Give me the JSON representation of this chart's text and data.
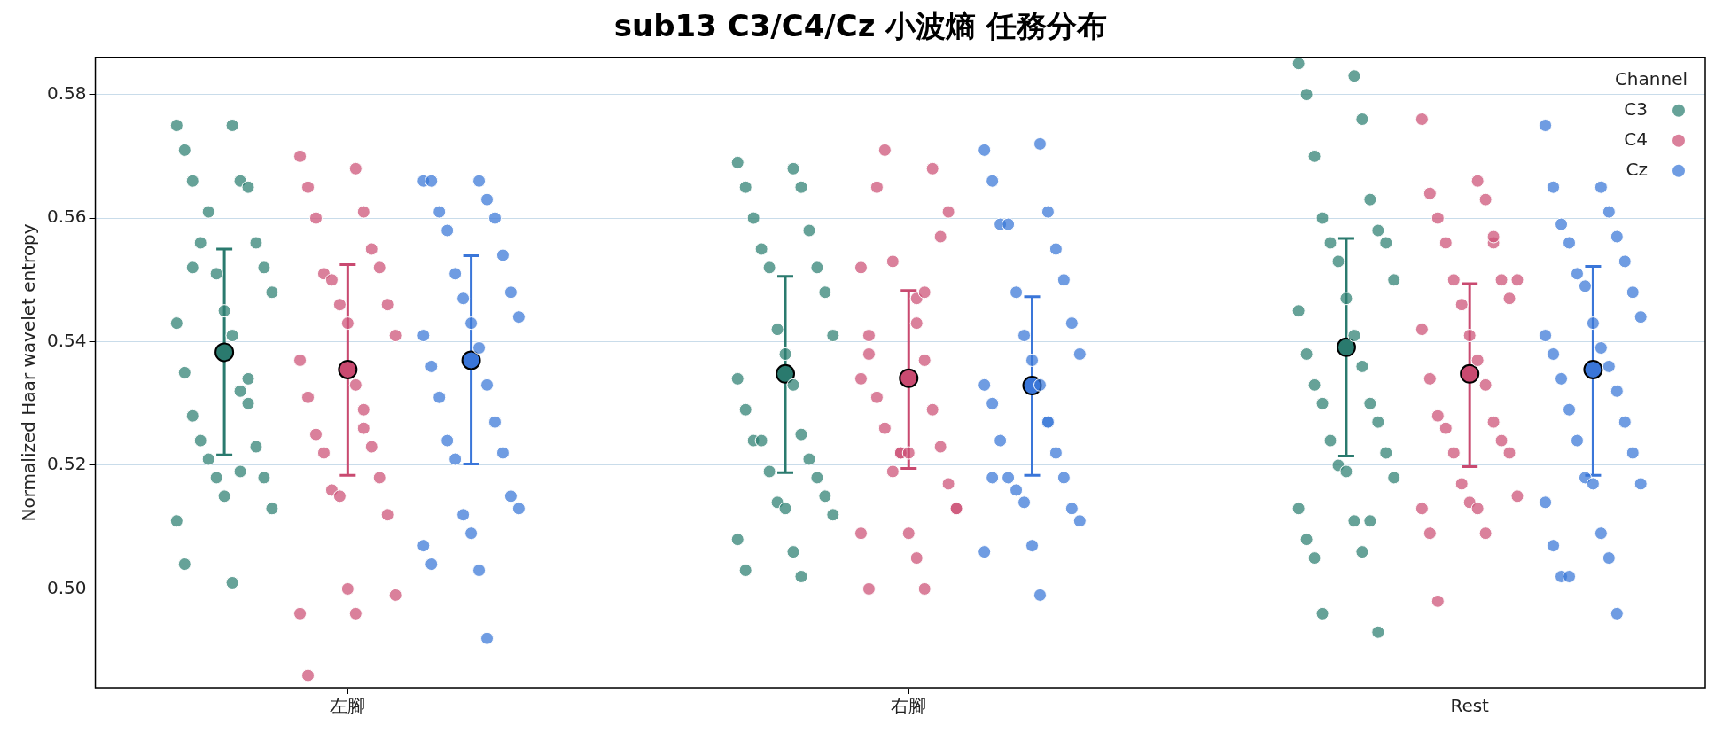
{
  "chart_data": {
    "type": "scatter",
    "title": "sub13 C3/C4/Cz 小波熵 任務分布",
    "ylabel": "Normalized Haar wavelet entropy",
    "legend_title": "Channel",
    "legend": "top right",
    "grid": "y",
    "marker": "circle",
    "categories": [
      "左腳",
      "右腳",
      "Rest"
    ],
    "ylim": [
      0.484,
      0.586
    ],
    "yticks": [
      {
        "value": 0.5,
        "label": "0.50"
      },
      {
        "value": 0.52,
        "label": "0.52"
      },
      {
        "value": 0.54,
        "label": "0.54"
      },
      {
        "value": 0.56,
        "label": "0.56"
      },
      {
        "value": 0.58,
        "label": "0.58"
      }
    ],
    "series": [
      {
        "name": "C3",
        "color": "#2f8073",
        "type": "scatter",
        "x": [
          "左腳",
          "左腳",
          "左腳",
          "左腳",
          "左腳",
          "左腳",
          "左腳",
          "左腳",
          "左腳",
          "左腳",
          "左腳",
          "左腳",
          "左腳",
          "左腳",
          "左腳",
          "左腳",
          "左腳",
          "左腳",
          "左腳",
          "左腳",
          "左腳",
          "左腳",
          "左腳",
          "左腳",
          "左腳",
          "左腳",
          "左腳",
          "左腳",
          "左腳",
          "左腳",
          "左腳",
          "左腳",
          "右腳",
          "右腳",
          "右腳",
          "右腳",
          "右腳",
          "右腳",
          "右腳",
          "右腳",
          "右腳",
          "右腳",
          "右腳",
          "右腳",
          "右腳",
          "右腳",
          "右腳",
          "右腳",
          "右腳",
          "右腳",
          "右腳",
          "右腳",
          "右腳",
          "右腳",
          "右腳",
          "右腳",
          "右腳",
          "右腳",
          "右腳",
          "右腳",
          "右腳",
          "右腳",
          "Rest",
          "Rest",
          "Rest",
          "Rest",
          "Rest",
          "Rest",
          "Rest",
          "Rest",
          "Rest",
          "Rest",
          "Rest",
          "Rest",
          "Rest",
          "Rest",
          "Rest",
          "Rest",
          "Rest",
          "Rest",
          "Rest",
          "Rest",
          "Rest",
          "Rest",
          "Rest",
          "Rest",
          "Rest",
          "Rest",
          "Rest",
          "Rest",
          "Rest",
          "Rest",
          "Rest",
          "Rest",
          "Rest",
          "Rest"
        ],
        "values": [
          0.575,
          0.575,
          0.571,
          0.566,
          0.566,
          0.565,
          0.556,
          0.556,
          0.561,
          0.552,
          0.551,
          0.548,
          0.545,
          0.543,
          0.541,
          0.535,
          0.532,
          0.528,
          0.53,
          0.524,
          0.523,
          0.521,
          0.518,
          0.518,
          0.513,
          0.515,
          0.511,
          0.501,
          0.504,
          0.519,
          0.552,
          0.534,
          0.569,
          0.568,
          0.565,
          0.565,
          0.56,
          0.558,
          0.555,
          0.552,
          0.552,
          0.548,
          0.542,
          0.541,
          0.538,
          0.534,
          0.533,
          0.529,
          0.525,
          0.524,
          0.521,
          0.524,
          0.518,
          0.519,
          0.515,
          0.514,
          0.512,
          0.513,
          0.508,
          0.506,
          0.503,
          0.502,
          0.585,
          0.583,
          0.58,
          0.576,
          0.57,
          0.563,
          0.56,
          0.558,
          0.556,
          0.556,
          0.553,
          0.55,
          0.547,
          0.545,
          0.541,
          0.538,
          0.536,
          0.533,
          0.53,
          0.53,
          0.527,
          0.524,
          0.522,
          0.52,
          0.518,
          0.519,
          0.513,
          0.511,
          0.508,
          0.506,
          0.505,
          0.511,
          0.496,
          0.493
        ]
      },
      {
        "name": "C4",
        "color": "#cc5277",
        "type": "scatter",
        "x": [
          "左腳",
          "左腳",
          "左腳",
          "左腳",
          "左腳",
          "左腳",
          "左腳",
          "左腳",
          "左腳",
          "左腳",
          "左腳",
          "左腳",
          "左腳",
          "左腳",
          "左腳",
          "左腳",
          "左腳",
          "左腳",
          "左腳",
          "左腳",
          "左腳",
          "左腳",
          "左腳",
          "左腳",
          "左腳",
          "左腳",
          "左腳",
          "左腳",
          "左腳",
          "左腳",
          "右腳",
          "右腳",
          "右腳",
          "右腳",
          "右腳",
          "右腳",
          "右腳",
          "右腳",
          "右腳",
          "右腳",
          "右腳",
          "右腳",
          "右腳",
          "右腳",
          "右腳",
          "右腳",
          "右腳",
          "右腳",
          "右腳",
          "右腳",
          "右腳",
          "右腳",
          "右腳",
          "右腳",
          "右腳",
          "右腳",
          "右腳",
          "右腳",
          "右腳",
          "右腳",
          "Rest",
          "Rest",
          "Rest",
          "Rest",
          "Rest",
          "Rest",
          "Rest",
          "Rest",
          "Rest",
          "Rest",
          "Rest",
          "Rest",
          "Rest",
          "Rest",
          "Rest",
          "Rest",
          "Rest",
          "Rest",
          "Rest",
          "Rest",
          "Rest",
          "Rest",
          "Rest",
          "Rest",
          "Rest",
          "Rest",
          "Rest",
          "Rest",
          "Rest",
          "Rest",
          "Rest",
          "Rest"
        ],
        "values": [
          0.57,
          0.568,
          0.565,
          0.561,
          0.56,
          0.555,
          0.551,
          0.552,
          0.55,
          0.546,
          0.546,
          0.541,
          0.543,
          0.537,
          0.533,
          0.531,
          0.529,
          0.525,
          0.523,
          0.522,
          0.518,
          0.516,
          0.512,
          0.515,
          0.499,
          0.5,
          0.496,
          0.496,
          0.486,
          0.526,
          0.552,
          0.547,
          0.541,
          0.537,
          0.531,
          0.529,
          0.526,
          0.523,
          0.519,
          0.517,
          0.522,
          0.513,
          0.509,
          0.509,
          0.505,
          0.5,
          0.5,
          0.565,
          0.568,
          0.571,
          0.557,
          0.553,
          0.561,
          0.522,
          0.513,
          0.522,
          0.534,
          0.543,
          0.538,
          0.548,
          0.576,
          0.566,
          0.564,
          0.563,
          0.56,
          0.556,
          0.556,
          0.55,
          0.55,
          0.547,
          0.546,
          0.55,
          0.541,
          0.542,
          0.537,
          0.534,
          0.533,
          0.528,
          0.527,
          0.526,
          0.524,
          0.522,
          0.522,
          0.517,
          0.515,
          0.514,
          0.513,
          0.513,
          0.509,
          0.509,
          0.498,
          0.557
        ]
      },
      {
        "name": "Cz",
        "color": "#3b78d8",
        "type": "scatter",
        "x": [
          "左腳",
          "左腳",
          "左腳",
          "左腳",
          "左腳",
          "左腳",
          "左腳",
          "左腳",
          "左腳",
          "左腳",
          "左腳",
          "左腳",
          "左腳",
          "左腳",
          "左腳",
          "左腳",
          "左腳",
          "左腳",
          "左腳",
          "左腳",
          "左腳",
          "左腳",
          "左腳",
          "左腳",
          "左腳",
          "左腳",
          "左腳",
          "左腳",
          "左腳",
          "左腳",
          "右腳",
          "右腳",
          "右腳",
          "右腳",
          "右腳",
          "右腳",
          "右腳",
          "右腳",
          "右腳",
          "右腳",
          "右腳",
          "右腳",
          "右腳",
          "右腳",
          "右腳",
          "右腳",
          "右腳",
          "右腳",
          "右腳",
          "右腳",
          "右腳",
          "右腳",
          "右腳",
          "右腳",
          "右腳",
          "右腳",
          "右腳",
          "右腳",
          "右腳",
          "右腳",
          "Rest",
          "Rest",
          "Rest",
          "Rest",
          "Rest",
          "Rest",
          "Rest",
          "Rest",
          "Rest",
          "Rest",
          "Rest",
          "Rest",
          "Rest",
          "Rest",
          "Rest",
          "Rest",
          "Rest",
          "Rest",
          "Rest",
          "Rest",
          "Rest",
          "Rest",
          "Rest",
          "Rest",
          "Rest",
          "Rest",
          "Rest",
          "Rest",
          "Rest",
          "Rest",
          "Rest",
          "Rest",
          "Rest"
        ],
        "values": [
          0.566,
          0.566,
          0.566,
          0.563,
          0.561,
          0.56,
          0.558,
          0.554,
          0.551,
          0.548,
          0.547,
          0.544,
          0.543,
          0.541,
          0.539,
          0.536,
          0.533,
          0.531,
          0.527,
          0.524,
          0.522,
          0.521,
          0.515,
          0.512,
          0.513,
          0.509,
          0.507,
          0.503,
          0.504,
          0.492,
          0.571,
          0.572,
          0.566,
          0.561,
          0.559,
          0.555,
          0.559,
          0.55,
          0.548,
          0.543,
          0.541,
          0.538,
          0.537,
          0.533,
          0.533,
          0.53,
          0.527,
          0.524,
          0.522,
          0.518,
          0.518,
          0.516,
          0.513,
          0.514,
          0.511,
          0.507,
          0.506,
          0.499,
          0.518,
          0.527,
          0.575,
          0.565,
          0.565,
          0.561,
          0.559,
          0.557,
          0.556,
          0.553,
          0.551,
          0.548,
          0.549,
          0.544,
          0.543,
          0.541,
          0.539,
          0.538,
          0.536,
          0.534,
          0.532,
          0.529,
          0.527,
          0.524,
          0.522,
          0.518,
          0.517,
          0.517,
          0.514,
          0.509,
          0.507,
          0.505,
          0.502,
          0.496,
          0.502
        ]
      },
      {
        "color": "#2a7a6e",
        "type": "scatter",
        "x": [
          "左腳",
          "右腳",
          "Rest"
        ],
        "values": [
          0.5383,
          0.5348,
          0.5391
        ],
        "errors": [
          [
            0.5217,
            0.555
          ],
          [
            0.5188,
            0.5506
          ],
          [
            0.5215,
            0.5567
          ]
        ]
      },
      {
        "color": "#c94a70",
        "type": "scatter",
        "x": [
          "左腳",
          "右腳",
          "Rest"
        ],
        "values": [
          0.5355,
          0.5341,
          0.5348
        ],
        "errors": [
          [
            0.5184,
            0.5525
          ],
          [
            0.5195,
            0.5483
          ],
          [
            0.5198,
            0.5494
          ]
        ]
      },
      {
        "color": "#3a76d9",
        "type": "scatter",
        "x": [
          "左腳",
          "右腳",
          "Rest"
        ],
        "values": [
          0.537,
          0.5329,
          0.5355
        ],
        "errors": [
          [
            0.5202,
            0.5539
          ],
          [
            0.5184,
            0.5473
          ],
          [
            0.5184,
            0.5522
          ]
        ]
      }
    ]
  }
}
